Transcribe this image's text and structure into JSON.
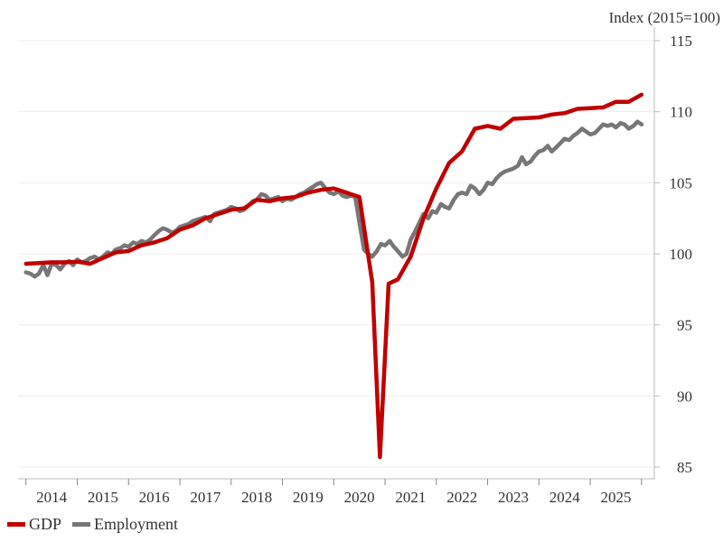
{
  "chart_data": {
    "type": "line",
    "title": "",
    "xlabel": "",
    "ylabel": "Index (2015=100)",
    "ylim": [
      85,
      115
    ],
    "yticks": [
      85,
      90,
      95,
      100,
      105,
      110,
      115
    ],
    "x_tick_labels": [
      "2014",
      "2015",
      "2016",
      "2017",
      "2018",
      "2019",
      "2020",
      "2021",
      "2022",
      "2023",
      "2024",
      "2025"
    ],
    "xlim": [
      2013.6,
      2025.65
    ],
    "grid": "horizontal",
    "legend_placement": "bottom-left",
    "series": [
      {
        "name": "GDP",
        "color": "#c00000",
        "points": [
          [
            2013.63,
            99.3
          ],
          [
            2013.88,
            99.35
          ],
          [
            2014.13,
            99.4
          ],
          [
            2014.38,
            99.4
          ],
          [
            2014.63,
            99.45
          ],
          [
            2014.88,
            99.3
          ],
          [
            2015.13,
            99.7
          ],
          [
            2015.38,
            100.1
          ],
          [
            2015.63,
            100.2
          ],
          [
            2015.88,
            100.6
          ],
          [
            2016.13,
            100.8
          ],
          [
            2016.38,
            101.1
          ],
          [
            2016.63,
            101.7
          ],
          [
            2016.88,
            102.0
          ],
          [
            2017.13,
            102.5
          ],
          [
            2017.38,
            102.8
          ],
          [
            2017.63,
            103.1
          ],
          [
            2017.88,
            103.2
          ],
          [
            2018.13,
            103.8
          ],
          [
            2018.38,
            103.7
          ],
          [
            2018.63,
            103.9
          ],
          [
            2018.88,
            104.0
          ],
          [
            2019.13,
            104.3
          ],
          [
            2019.38,
            104.5
          ],
          [
            2019.63,
            104.6
          ],
          [
            2019.88,
            104.3
          ],
          [
            2020.13,
            104.0
          ],
          [
            2020.38,
            98.0
          ],
          [
            2020.53,
            85.7
          ],
          [
            2020.7,
            97.9
          ],
          [
            2020.88,
            98.2
          ],
          [
            2021.13,
            99.8
          ],
          [
            2021.38,
            102.5
          ],
          [
            2021.63,
            104.6
          ],
          [
            2021.88,
            106.4
          ],
          [
            2022.13,
            107.2
          ],
          [
            2022.38,
            108.8
          ],
          [
            2022.63,
            109.0
          ],
          [
            2022.88,
            108.8
          ],
          [
            2023.13,
            109.5
          ],
          [
            2023.38,
            109.55
          ],
          [
            2023.63,
            109.6
          ],
          [
            2023.88,
            109.8
          ],
          [
            2024.13,
            109.9
          ],
          [
            2024.38,
            110.2
          ],
          [
            2024.63,
            110.25
          ],
          [
            2024.88,
            110.3
          ],
          [
            2025.13,
            110.7
          ],
          [
            2025.38,
            110.7
          ],
          [
            2025.63,
            111.2
          ]
        ]
      },
      {
        "name": "Employment",
        "color": "#777777",
        "points": [
          [
            2013.63,
            98.7
          ],
          [
            2013.72,
            98.6
          ],
          [
            2013.8,
            98.4
          ],
          [
            2013.88,
            98.6
          ],
          [
            2013.97,
            99.2
          ],
          [
            2014.05,
            98.5
          ],
          [
            2014.13,
            99.3
          ],
          [
            2014.22,
            99.2
          ],
          [
            2014.3,
            98.9
          ],
          [
            2014.38,
            99.3
          ],
          [
            2014.47,
            99.5
          ],
          [
            2014.55,
            99.2
          ],
          [
            2014.63,
            99.6
          ],
          [
            2014.72,
            99.4
          ],
          [
            2014.8,
            99.5
          ],
          [
            2014.88,
            99.7
          ],
          [
            2014.97,
            99.8
          ],
          [
            2015.05,
            99.6
          ],
          [
            2015.13,
            99.8
          ],
          [
            2015.22,
            100.1
          ],
          [
            2015.3,
            100.0
          ],
          [
            2015.38,
            100.3
          ],
          [
            2015.47,
            100.4
          ],
          [
            2015.55,
            100.6
          ],
          [
            2015.63,
            100.5
          ],
          [
            2015.72,
            100.8
          ],
          [
            2015.8,
            100.7
          ],
          [
            2015.88,
            100.9
          ],
          [
            2015.97,
            100.8
          ],
          [
            2016.05,
            101.0
          ],
          [
            2016.13,
            101.3
          ],
          [
            2016.22,
            101.6
          ],
          [
            2016.3,
            101.8
          ],
          [
            2016.38,
            101.7
          ],
          [
            2016.47,
            101.5
          ],
          [
            2016.55,
            101.6
          ],
          [
            2016.63,
            101.9
          ],
          [
            2016.72,
            102.0
          ],
          [
            2016.8,
            102.1
          ],
          [
            2016.88,
            102.3
          ],
          [
            2016.97,
            102.4
          ],
          [
            2017.05,
            102.5
          ],
          [
            2017.13,
            102.6
          ],
          [
            2017.22,
            102.3
          ],
          [
            2017.3,
            102.8
          ],
          [
            2017.38,
            102.9
          ],
          [
            2017.47,
            103.0
          ],
          [
            2017.55,
            103.1
          ],
          [
            2017.63,
            103.3
          ],
          [
            2017.72,
            103.2
          ],
          [
            2017.8,
            103.0
          ],
          [
            2017.88,
            103.1
          ],
          [
            2017.97,
            103.4
          ],
          [
            2018.05,
            103.7
          ],
          [
            2018.13,
            103.8
          ],
          [
            2018.22,
            104.2
          ],
          [
            2018.3,
            104.1
          ],
          [
            2018.38,
            103.8
          ],
          [
            2018.47,
            103.9
          ],
          [
            2018.55,
            104.0
          ],
          [
            2018.63,
            103.7
          ],
          [
            2018.72,
            103.9
          ],
          [
            2018.8,
            103.8
          ],
          [
            2018.88,
            104.0
          ],
          [
            2018.97,
            104.2
          ],
          [
            2019.05,
            104.3
          ],
          [
            2019.13,
            104.5
          ],
          [
            2019.22,
            104.7
          ],
          [
            2019.3,
            104.9
          ],
          [
            2019.38,
            105.0
          ],
          [
            2019.47,
            104.6
          ],
          [
            2019.55,
            104.3
          ],
          [
            2019.63,
            104.2
          ],
          [
            2019.72,
            104.4
          ],
          [
            2019.8,
            104.1
          ],
          [
            2019.88,
            104.0
          ],
          [
            2019.97,
            104.1
          ],
          [
            2020.05,
            104.0
          ],
          [
            2020.13,
            102.2
          ],
          [
            2020.22,
            100.3
          ],
          [
            2020.3,
            100.0
          ],
          [
            2020.38,
            99.8
          ],
          [
            2020.47,
            100.2
          ],
          [
            2020.55,
            100.7
          ],
          [
            2020.63,
            100.6
          ],
          [
            2020.72,
            100.9
          ],
          [
            2020.8,
            100.5
          ],
          [
            2020.88,
            100.2
          ],
          [
            2020.97,
            99.8
          ],
          [
            2021.05,
            100.0
          ],
          [
            2021.13,
            101.0
          ],
          [
            2021.22,
            101.6
          ],
          [
            2021.3,
            102.2
          ],
          [
            2021.38,
            102.8
          ],
          [
            2021.47,
            102.5
          ],
          [
            2021.55,
            103.0
          ],
          [
            2021.63,
            102.9
          ],
          [
            2021.72,
            103.5
          ],
          [
            2021.8,
            103.3
          ],
          [
            2021.88,
            103.2
          ],
          [
            2021.97,
            103.8
          ],
          [
            2022.05,
            104.2
          ],
          [
            2022.13,
            104.3
          ],
          [
            2022.22,
            104.2
          ],
          [
            2022.3,
            104.8
          ],
          [
            2022.38,
            104.6
          ],
          [
            2022.47,
            104.2
          ],
          [
            2022.55,
            104.5
          ],
          [
            2022.63,
            105.0
          ],
          [
            2022.72,
            104.9
          ],
          [
            2022.8,
            105.3
          ],
          [
            2022.88,
            105.6
          ],
          [
            2022.97,
            105.8
          ],
          [
            2023.05,
            105.9
          ],
          [
            2023.13,
            106.0
          ],
          [
            2023.22,
            106.2
          ],
          [
            2023.3,
            106.8
          ],
          [
            2023.38,
            106.3
          ],
          [
            2023.47,
            106.5
          ],
          [
            2023.55,
            106.9
          ],
          [
            2023.63,
            107.2
          ],
          [
            2023.72,
            107.3
          ],
          [
            2023.8,
            107.6
          ],
          [
            2023.88,
            107.2
          ],
          [
            2023.97,
            107.5
          ],
          [
            2024.05,
            107.8
          ],
          [
            2024.13,
            108.1
          ],
          [
            2024.22,
            108.0
          ],
          [
            2024.3,
            108.3
          ],
          [
            2024.38,
            108.5
          ],
          [
            2024.47,
            108.8
          ],
          [
            2024.55,
            108.6
          ],
          [
            2024.63,
            108.4
          ],
          [
            2024.72,
            108.5
          ],
          [
            2024.8,
            108.8
          ],
          [
            2024.88,
            109.1
          ],
          [
            2024.97,
            109.0
          ],
          [
            2025.05,
            109.1
          ],
          [
            2025.13,
            108.9
          ],
          [
            2025.22,
            109.2
          ],
          [
            2025.3,
            109.1
          ],
          [
            2025.38,
            108.8
          ],
          [
            2025.47,
            109.0
          ],
          [
            2025.55,
            109.3
          ],
          [
            2025.63,
            109.1
          ]
        ]
      }
    ]
  }
}
